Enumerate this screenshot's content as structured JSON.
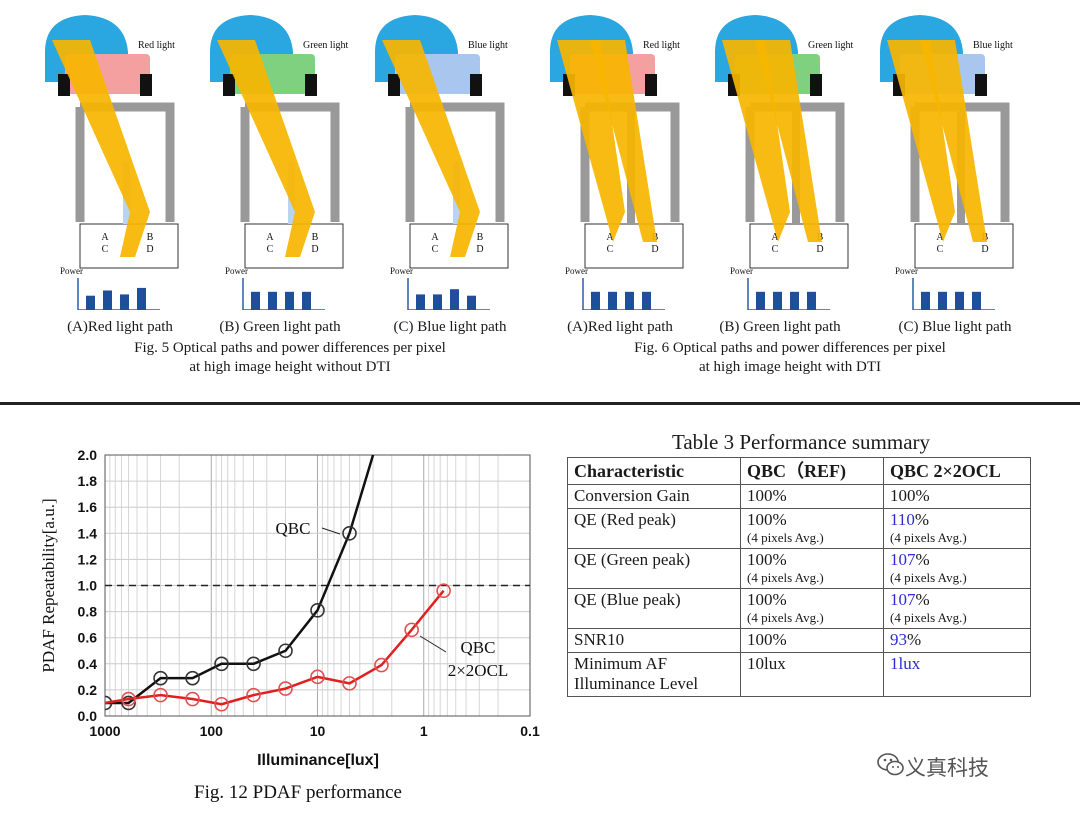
{
  "fig5": {
    "caption_line1": "Fig. 5 Optical paths and power differences per pixel",
    "caption_line2": "at high image height without DTI",
    "panels": [
      {
        "light": "Red light",
        "label": "(A)Red light path",
        "color": "#f4a0a0",
        "bars": [
          0.55,
          0.75,
          0.6,
          0.85
        ]
      },
      {
        "light": "Green light",
        "label": "(B) Green light path",
        "color": "#7fd07f",
        "bars": [
          0.7,
          0.7,
          0.7,
          0.7
        ]
      },
      {
        "light": "Blue light",
        "label": "(C) Blue light path",
        "color": "#a9c6ef",
        "bars": [
          0.6,
          0.6,
          0.8,
          0.55
        ]
      }
    ]
  },
  "fig6": {
    "caption_line1": "Fig. 6 Optical paths and power differences per pixel",
    "caption_line2": "at high image height with DTI",
    "panels": [
      {
        "light": "Red light",
        "label": "(A)Red light path",
        "color": "#f4a0a0",
        "bars": [
          0.7,
          0.7,
          0.7,
          0.7
        ]
      },
      {
        "light": "Green light",
        "label": "(B) Green light path",
        "color": "#7fd07f",
        "bars": [
          0.7,
          0.7,
          0.7,
          0.7
        ]
      },
      {
        "light": "Blue light",
        "label": "(C) Blue light path",
        "color": "#a9c6ef",
        "bars": [
          0.7,
          0.7,
          0.7,
          0.7
        ]
      }
    ]
  },
  "pixel_labels": {
    "a": "A",
    "b": "B",
    "c": "C",
    "d": "D"
  },
  "power_label": "Power",
  "chart_data": {
    "type": "line",
    "title": "",
    "caption": "Fig. 12 PDAF performance",
    "xlabel": "Illuminance[lux]",
    "ylabel": "PDAF Repeatability[a.u.]",
    "x_scale": "log-reversed",
    "xlim": [
      1000,
      0.1
    ],
    "ylim": [
      0,
      2.0
    ],
    "x_ticks": [
      "1000",
      "100",
      "10",
      "1",
      "0.1"
    ],
    "y_ticks": [
      "0.0",
      "0.2",
      "0.4",
      "0.6",
      "0.8",
      "1.0",
      "1.2",
      "1.4",
      "1.6",
      "1.8",
      "2.0"
    ],
    "reference_line": 1.0,
    "series": [
      {
        "name": "QBC",
        "color": "#111111",
        "x": [
          1000,
          600,
          300,
          150,
          80,
          40,
          20,
          10,
          5,
          3
        ],
        "y": [
          0.1,
          0.1,
          0.29,
          0.29,
          0.4,
          0.4,
          0.5,
          0.81,
          1.4,
          2.0
        ],
        "markers": [
          1,
          1,
          1,
          1,
          1,
          1,
          1,
          1,
          1,
          0
        ]
      },
      {
        "name": "QBC 2×2OCL",
        "color": "#e02020",
        "x": [
          1000,
          600,
          300,
          150,
          80,
          40,
          20,
          10,
          5,
          2.5,
          1.3,
          0.65
        ],
        "y": [
          0.1,
          0.13,
          0.16,
          0.13,
          0.09,
          0.16,
          0.21,
          0.3,
          0.25,
          0.39,
          0.66,
          0.96
        ],
        "markers": [
          0,
          1,
          1,
          1,
          1,
          1,
          1,
          1,
          1,
          1,
          1,
          1
        ]
      }
    ],
    "annotations": {
      "qbc": "QBC",
      "ocl_line1": "QBC",
      "ocl_line2": "2×2OCL"
    }
  },
  "table": {
    "title": "Table 3 Performance summary",
    "headers": [
      "Characteristic",
      "QBC（REF)",
      "QBC 2×2OCL"
    ],
    "rows": [
      {
        "c": "Conversion Gain",
        "ref": "100%",
        "ref_sub": "",
        "ocl_num": "",
        "ocl_rest": "100%",
        "ocl_sub": ""
      },
      {
        "c": "QE (Red peak)",
        "ref": "100%",
        "ref_sub": "(4 pixels Avg.)",
        "ocl_num": "110",
        "ocl_rest": "%",
        "ocl_sub": "(4 pixels Avg.)"
      },
      {
        "c": "QE (Green peak)",
        "ref": "100%",
        "ref_sub": "(4 pixels Avg.)",
        "ocl_num": "107",
        "ocl_rest": "%",
        "ocl_sub": "(4 pixels Avg.)"
      },
      {
        "c": "QE (Blue peak)",
        "ref": "100%",
        "ref_sub": "(4 pixels Avg.)",
        "ocl_num": "107",
        "ocl_rest": "%",
        "ocl_sub": "(4 pixels Avg.)"
      },
      {
        "c": "SNR10",
        "ref": "100%",
        "ref_sub": "",
        "ocl_num": "93",
        "ocl_rest": "%",
        "ocl_sub": ""
      },
      {
        "c": "Minimum AF Illuminance Level",
        "ref": "10lux",
        "ref_sub": "",
        "ocl_num": "1lux",
        "ocl_rest": "",
        "ocl_sub": ""
      }
    ]
  },
  "watermark": "义真科技"
}
